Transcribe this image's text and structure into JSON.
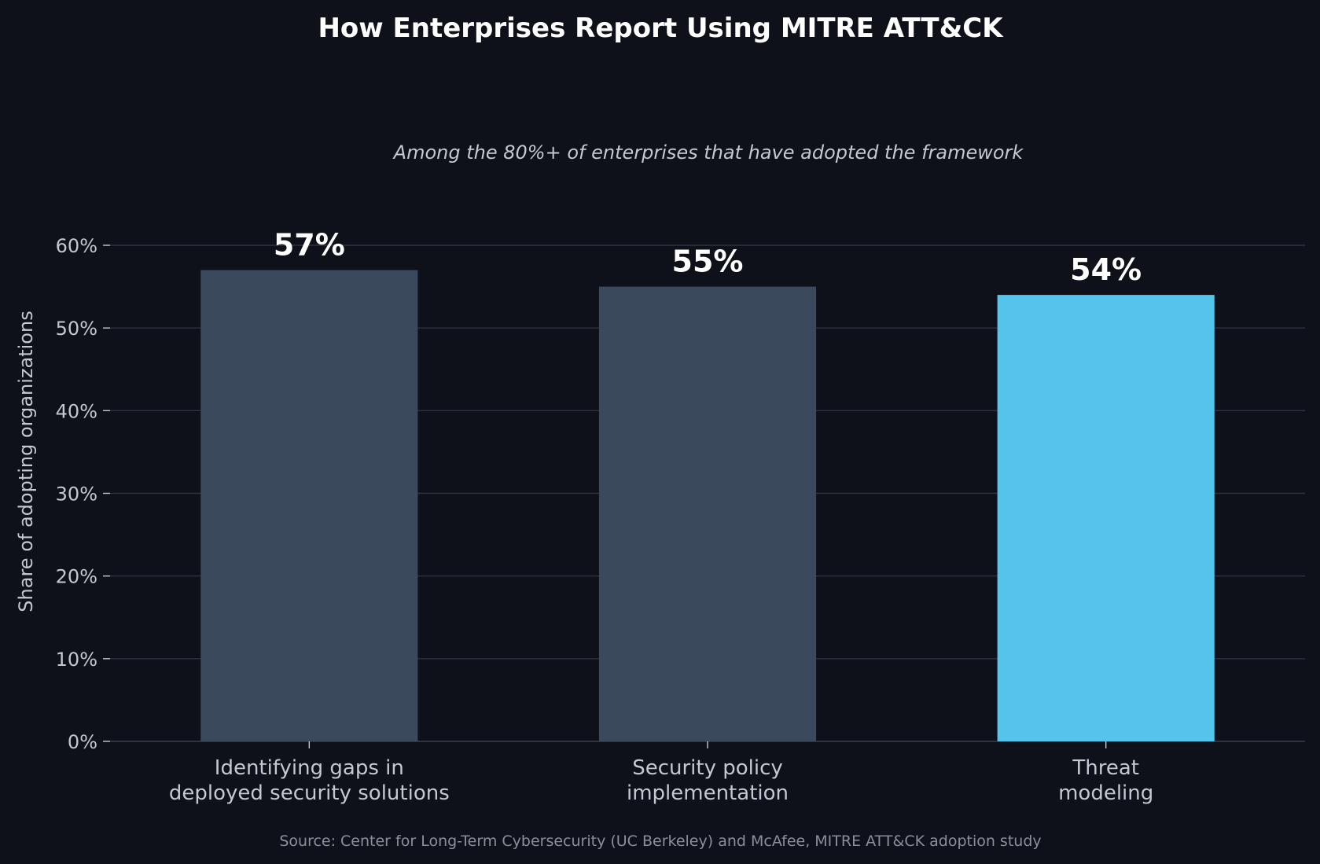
{
  "chart_data": {
    "type": "bar",
    "title": "How Enterprises Report Using MITRE ATT&CK",
    "subtitle": "Among the 80%+ of enterprises that have adopted the framework",
    "xlabel": "",
    "ylabel": "Share of adopting organizations",
    "categories": [
      [
        "Identifying gaps in",
        "deployed security solutions"
      ],
      [
        "Security policy",
        "implementation"
      ],
      [
        "Threat",
        "modeling"
      ]
    ],
    "values": [
      57,
      55,
      54
    ],
    "value_labels": [
      "57%",
      "55%",
      "54%"
    ],
    "bar_colors": [
      "#3a4a5c",
      "#3a4a5c",
      "#54c4ec"
    ],
    "ylim": [
      0,
      60
    ],
    "yticks": [
      0,
      10,
      20,
      30,
      40,
      50,
      60
    ],
    "ytick_labels": [
      "0%",
      "10%",
      "20%",
      "30%",
      "40%",
      "50%",
      "60%"
    ],
    "grid": true,
    "source": "Source: Center for Long-Term Cybersecurity (UC Berkeley) and McAfee, MITRE ATT&CK adoption study"
  }
}
